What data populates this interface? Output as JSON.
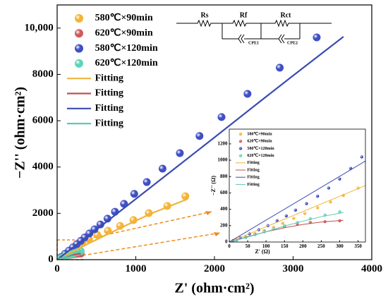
{
  "chart_data": [
    {
      "type": "scatter",
      "xlabel": "Z' (ohm·cm²)",
      "ylabel": "−Z'' (ohm·cm²)",
      "xlim": [
        0,
        4000
      ],
      "ylim": [
        0,
        11000
      ],
      "xticks": [
        0,
        1000,
        2000,
        3000,
        4000
      ],
      "yticks": [
        0,
        2000,
        4000,
        6000,
        8000,
        {
          "value": 10000,
          "label": "10,000"
        }
      ],
      "legend": "upper left",
      "series": [
        {
          "name": "580℃×90min",
          "color": "#f5b335",
          "mode": "markers",
          "x": [
            1630,
            1400,
            1165,
            970,
            800,
            645,
            510,
            405,
            320,
            240,
            170,
            100,
            40
          ],
          "values": [
            2740,
            2320,
            2010,
            1710,
            1460,
            1250,
            1070,
            880,
            720,
            560,
            400,
            250,
            100
          ]
        },
        {
          "name": "620℃×90min",
          "color": "#cd5c5c",
          "mode": "markers",
          "x": [
            300,
            260,
            220,
            185,
            150,
            120,
            95,
            70,
            45,
            20
          ],
          "values": [
            260,
            250,
            240,
            220,
            190,
            160,
            130,
            95,
            60,
            25
          ]
        },
        {
          "name": "580℃×120min",
          "color": "#3f4fc4",
          "mode": "markers",
          "x": [
            3300,
            2830,
            2420,
            2090,
            1810,
            1560,
            1340,
            1140,
            980,
            850,
            735,
            640,
            550,
            475,
            410,
            350,
            300,
            250,
            200,
            150,
            100,
            50
          ],
          "values": [
            9600,
            8290,
            7160,
            6160,
            5340,
            4600,
            3930,
            3350,
            2840,
            2410,
            2070,
            1770,
            1520,
            1310,
            1130,
            960,
            810,
            670,
            530,
            390,
            250,
            110
          ]
        },
        {
          "name": "620℃×120min",
          "color": "#5fd3b7",
          "mode": "markers",
          "x": [
            300,
            260,
            220,
            185,
            150,
            120,
            95,
            70,
            45,
            20
          ],
          "values": [
            370,
            330,
            285,
            240,
            200,
            160,
            125,
            90,
            55,
            22
          ]
        },
        {
          "name": "Fitting",
          "color": "#f0b43c",
          "mode": "line",
          "x": [
            0,
            400,
            800,
            1200,
            1660
          ],
          "values": [
            0,
            700,
            1360,
            2000,
            2620
          ]
        },
        {
          "name": "Fitting",
          "color": "#c0504d",
          "mode": "line",
          "x": [
            0,
            100,
            200,
            300
          ],
          "values": [
            0,
            120,
            210,
            260
          ]
        },
        {
          "name": "Fitting",
          "color": "#3a4bb0",
          "mode": "line",
          "x": [
            0,
            500,
            1000,
            1500,
            2000,
            2500,
            3000,
            3640
          ],
          "values": [
            0,
            1300,
            2620,
            3950,
            5280,
            6620,
            7950,
            9630
          ]
        },
        {
          "name": "Fitting",
          "color": "#5cc9b0",
          "mode": "line",
          "x": [
            0,
            100,
            200,
            300
          ],
          "values": [
            0,
            130,
            260,
            360
          ]
        }
      ],
      "circuit": {
        "labels": [
          "Rs",
          "Rf",
          "Rct",
          "CPE1",
          "CPE2"
        ]
      }
    },
    {
      "type": "scatter",
      "xlabel": "Z' (Ω)",
      "ylabel": "−Z'' (Ω)",
      "xlim": [
        0,
        370
      ],
      "ylim": [
        0,
        1380
      ],
      "xticks": [
        0,
        50,
        100,
        150,
        200,
        250,
        300,
        350
      ],
      "yticks": [
        0,
        200,
        400,
        600,
        800,
        1000,
        1200
      ],
      "legend": "upper left",
      "series": [
        {
          "name": "580℃×90min",
          "color": "#f5b335",
          "mode": "markers",
          "x": [
            350,
            310,
            275,
            240,
            205,
            175,
            145,
            120,
            95,
            70,
            45,
            20
          ],
          "values": [
            660,
            570,
            490,
            420,
            350,
            290,
            230,
            180,
            140,
            100,
            60,
            25
          ]
        },
        {
          "name": "620℃×90min",
          "color": "#cd5c5c",
          "mode": "markers",
          "x": [
            300,
            260,
            220,
            185,
            150,
            120,
            95,
            70,
            45,
            20
          ],
          "values": [
            260,
            250,
            240,
            220,
            190,
            160,
            130,
            95,
            60,
            25
          ]
        },
        {
          "name": "580℃×120min",
          "color": "#3f4fc4",
          "mode": "markers",
          "x": [
            360,
            330,
            300,
            270,
            240,
            210,
            180,
            155,
            130,
            105,
            80,
            55,
            30,
            10
          ],
          "values": [
            1040,
            900,
            770,
            660,
            560,
            470,
            390,
            320,
            260,
            200,
            150,
            100,
            50,
            15
          ]
        },
        {
          "name": "620℃×120min",
          "color": "#5fd3b7",
          "mode": "markers",
          "x": [
            300,
            260,
            220,
            185,
            150,
            120,
            95,
            70,
            45,
            20
          ],
          "values": [
            370,
            330,
            285,
            240,
            200,
            160,
            125,
            90,
            55,
            22
          ]
        },
        {
          "name": "Fitting",
          "color": "#f0b43c",
          "mode": "line",
          "x": [
            0,
            370
          ],
          "values": [
            0,
            690
          ]
        },
        {
          "name": "Fitting",
          "color": "#c0504d",
          "mode": "line",
          "x": [
            0,
            50,
            100,
            150,
            200,
            250,
            310
          ],
          "values": [
            0,
            65,
            125,
            175,
            215,
            245,
            265
          ]
        },
        {
          "name": "Fitting",
          "color": "#3a4bb0",
          "mode": "line",
          "x": [
            0,
            370
          ],
          "values": [
            0,
            990
          ]
        },
        {
          "name": "Fitting",
          "color": "#5cc9b0",
          "mode": "line",
          "x": [
            0,
            50,
            100,
            150,
            200,
            250,
            310
          ],
          "values": [
            0,
            60,
            125,
            195,
            255,
            310,
            360
          ]
        }
      ]
    }
  ]
}
